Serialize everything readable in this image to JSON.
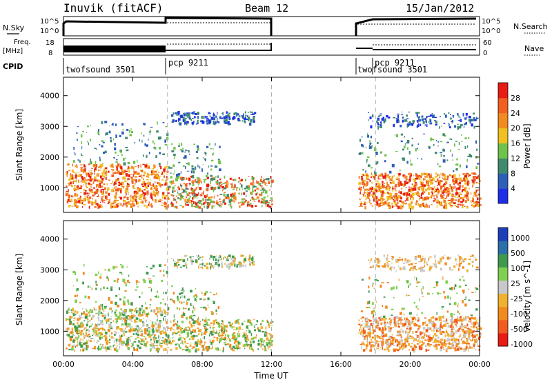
{
  "header": {
    "station": "Inuvik (fitACF)",
    "beam": "Beam 12",
    "date": "15/Jan/2012"
  },
  "labels": {
    "nsky_line1": "N.Sky",
    "freq_line1": "Freq.",
    "freq_line2": "[MHz]",
    "cpid": "CPID",
    "nsearch": "N.Search",
    "nave": "Nave",
    "sci_1e5": "10^5",
    "sci_1e0": "10^0",
    "freq_18": "18",
    "freq_8": "8",
    "nave_60": "60",
    "nave_0": "0"
  },
  "modes": [
    {
      "label": "twofsound 3501",
      "start_hour": 0
    },
    {
      "label": "pcp 9211",
      "start_hour": 6
    },
    {
      "label": "twofsound 3501",
      "start_hour": 17
    },
    {
      "label": "pcp 9211",
      "start_hour": 18
    }
  ],
  "chart_data": [
    {
      "type": "heatmap",
      "name": "power",
      "ylabel": "Slant Range [km]",
      "xlabel": "",
      "xlim": [
        0,
        24
      ],
      "ylim": [
        200,
        4600
      ],
      "yticks": [
        1000,
        2000,
        3000,
        4000
      ],
      "colorbar": {
        "label": "Power [dB]",
        "ticks": [
          "4",
          "8",
          "12",
          "16",
          "20",
          "24",
          "28"
        ],
        "colors": [
          "#1f2fe8",
          "#2d5fb8",
          "#3f8a6e",
          "#6fc24a",
          "#f0c020",
          "#f28a20",
          "#f26020",
          "#e81c14"
        ]
      },
      "data_gaps_hours": [
        [
          12.1,
          16.95
        ]
      ]
    },
    {
      "type": "heatmap",
      "name": "velocity",
      "ylabel": "Slant Range [km]",
      "xlabel": "Time UT",
      "xlim": [
        0,
        24
      ],
      "ylim": [
        200,
        4600
      ],
      "yticks": [
        1000,
        2000,
        3000,
        4000
      ],
      "xticklabels": [
        "00:00",
        "04:00",
        "08:00",
        "12:00",
        "16:00",
        "20:00",
        "00:00"
      ],
      "colorbar": {
        "label": "Velocity [m s^-1]",
        "ticks": [
          "1000",
          "500",
          "100",
          "25",
          "-25",
          "-100",
          "-500",
          "-1000"
        ],
        "colors": [
          "#1f3fb8",
          "#2d6fa8",
          "#3f9a4e",
          "#7fd050",
          "#c8c8c8",
          "#f0b030",
          "#f28a20",
          "#f25a20",
          "#e81c14"
        ]
      },
      "data_gaps_hours": [
        [
          12.1,
          16.95
        ]
      ]
    }
  ],
  "colors": {
    "axis": "#000000",
    "dashed_marker": "#b0b0b0"
  }
}
